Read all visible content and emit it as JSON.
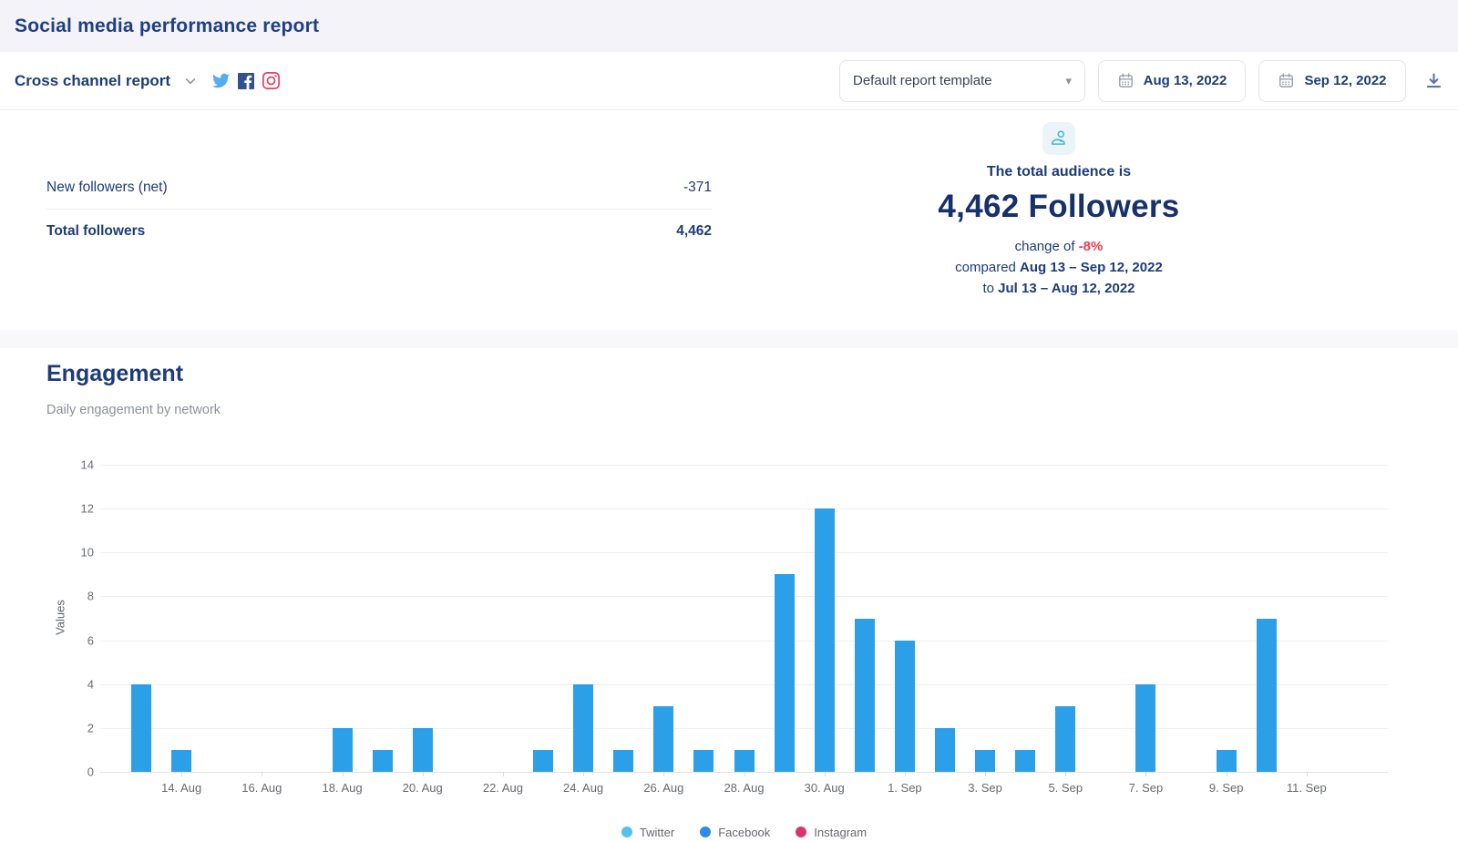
{
  "header": {
    "title": "Social media performance report"
  },
  "toolbar": {
    "report_name": "Cross channel report",
    "template_select": {
      "value": "Default report template"
    },
    "date_from": "Aug 13, 2022",
    "date_to": "Sep 12, 2022",
    "icons": {
      "report_expand": "chevron-down",
      "networks": [
        "twitter",
        "facebook",
        "instagram"
      ],
      "calendar": "calendar",
      "download": "download-arrow"
    }
  },
  "summary": {
    "rows": [
      {
        "label": "New followers (net)",
        "value": "-371"
      },
      {
        "label": "Total followers",
        "value": "4,462"
      }
    ],
    "audience": {
      "icon": "users",
      "line1": "The total audience is",
      "big": "4,462 Followers",
      "change_prefix": "change of ",
      "change_value": "-8%",
      "compare_prefix": "compared ",
      "compare_range": "Aug 13 – Sep 12, 2022",
      "to_prefix": "to ",
      "base_range": "Jul 13 – Aug 12, 2022"
    }
  },
  "engagement": {
    "title": "Engagement",
    "subtitle": "Daily engagement by network"
  },
  "chart_data": {
    "type": "bar",
    "title": "Engagement",
    "subtitle": "Daily engagement by network",
    "ylabel": "Values",
    "ylim": [
      0,
      14
    ],
    "yticks": [
      0,
      2,
      4,
      6,
      8,
      10,
      12,
      14
    ],
    "grid": true,
    "bar_color": "#2B9FE8",
    "tick_start": 1,
    "tick_every": 2,
    "categories": [
      "13. Aug",
      "14. Aug",
      "15. Aug",
      "16. Aug",
      "17. Aug",
      "18. Aug",
      "19. Aug",
      "20. Aug",
      "21. Aug",
      "22. Aug",
      "23. Aug",
      "24. Aug",
      "25. Aug",
      "26. Aug",
      "27. Aug",
      "28. Aug",
      "29. Aug",
      "30. Aug",
      "31. Aug",
      "1. Sep",
      "2. Sep",
      "3. Sep",
      "4. Sep",
      "5. Sep",
      "6. Sep",
      "7. Sep",
      "8. Sep",
      "9. Sep",
      "10. Sep",
      "11. Sep",
      "12. Sep"
    ],
    "values": [
      4,
      1,
      0,
      0,
      0,
      2,
      1,
      2,
      0,
      0,
      1,
      4,
      1,
      3,
      1,
      1,
      9,
      12,
      7,
      6,
      2,
      1,
      1,
      3,
      0,
      4,
      0,
      1,
      7,
      0,
      0
    ],
    "legend_position": "bottom",
    "legend": [
      {
        "label": "Twitter",
        "color": "#55C0F0"
      },
      {
        "label": "Facebook",
        "color": "#2E8BE8"
      },
      {
        "label": "Instagram",
        "color": "#D9346E"
      }
    ]
  },
  "colors": {
    "navy": "#1E3C78",
    "navy_dark": "#16316B",
    "red": "#EA3E53",
    "bar_blue": "#2B9FE8",
    "header_bg": "#F3F3F9",
    "twitter": "#55ACEE",
    "facebook": "#33518E",
    "instagram": "#E4405F",
    "audience_icon": "#45B5D9"
  }
}
